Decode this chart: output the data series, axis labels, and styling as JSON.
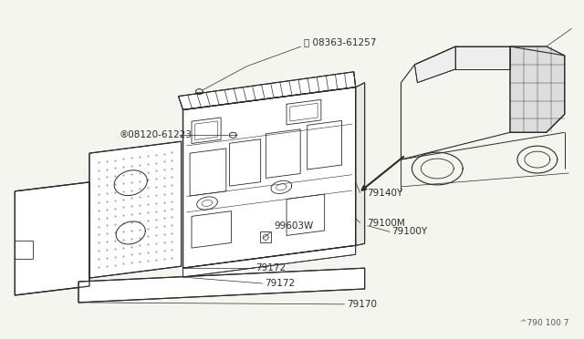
{
  "bg_color": "#f5f5f0",
  "line_color": "#2a2a2a",
  "figure_code": "^790 100 7",
  "label_08363": "Ⓢ 08363-61257",
  "label_08120": "®08120-61223",
  "label_79140Y": "79140Y",
  "label_79100M": "79100M",
  "label_79100Y": "79100Y",
  "label_99603W": "99603W",
  "label_79172a": "79172",
  "label_79172b": "79172",
  "label_79170": "79170"
}
